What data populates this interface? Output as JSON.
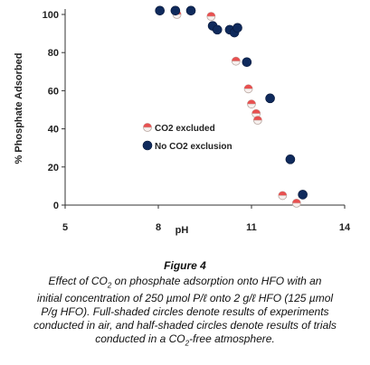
{
  "chart_data": {
    "type": "scatter",
    "title": "",
    "xlabel": "pH",
    "ylabel": "% Phosphate Adsorbed",
    "xlim": [
      5,
      14
    ],
    "ylim": [
      0,
      100
    ],
    "xticks": [
      "5",
      "8",
      "11",
      "14"
    ],
    "yticks": [
      "0",
      "20",
      "40",
      "60",
      "80",
      "100"
    ],
    "grid": false,
    "legend_placement": "center-left",
    "series": [
      {
        "name": "CO2 excluded",
        "marker": "half-shaded",
        "points": [
          {
            "x": 8.6,
            "y": 100
          },
          {
            "x": 9.7,
            "y": 99
          },
          {
            "x": 10.5,
            "y": 75.5
          },
          {
            "x": 10.9,
            "y": 61
          },
          {
            "x": 11.0,
            "y": 53
          },
          {
            "x": 11.15,
            "y": 48
          },
          {
            "x": 11.2,
            "y": 44.5
          },
          {
            "x": 12.0,
            "y": 5
          },
          {
            "x": 12.45,
            "y": 1
          }
        ]
      },
      {
        "name": "No CO2 exclusion",
        "marker": "full-shaded",
        "points": [
          {
            "x": 8.05,
            "y": 102
          },
          {
            "x": 8.55,
            "y": 102
          },
          {
            "x": 9.05,
            "y": 102
          },
          {
            "x": 9.75,
            "y": 94
          },
          {
            "x": 9.9,
            "y": 92
          },
          {
            "x": 10.3,
            "y": 92
          },
          {
            "x": 10.45,
            "y": 90.5
          },
          {
            "x": 10.55,
            "y": 93
          },
          {
            "x": 10.85,
            "y": 75
          },
          {
            "x": 11.6,
            "y": 56
          },
          {
            "x": 12.25,
            "y": 24
          },
          {
            "x": 12.65,
            "y": 5.5
          }
        ]
      }
    ]
  },
  "colors": {
    "full": "#0f2a5c",
    "half_top": "#e85050",
    "half_bottom": "#f7f0ee",
    "axis": "#333333"
  },
  "caption": {
    "figure": "Figure 4",
    "line1_a": "Effect of CO",
    "line1_sub": "2",
    "line1_b": " on phosphate adsorption onto HFO with an",
    "line2": "initial concentration of 250 µmol P/ℓ onto 2 g/ℓ HFO (125 µmol",
    "line3": "P/g HFO). Full-shaded circles denote results of experiments",
    "line4": "conducted in air, and half-shaded circles denote results of trials",
    "line5_a": "conducted in a CO",
    "line5_sub": "2",
    "line5_b": "-free atmosphere."
  }
}
